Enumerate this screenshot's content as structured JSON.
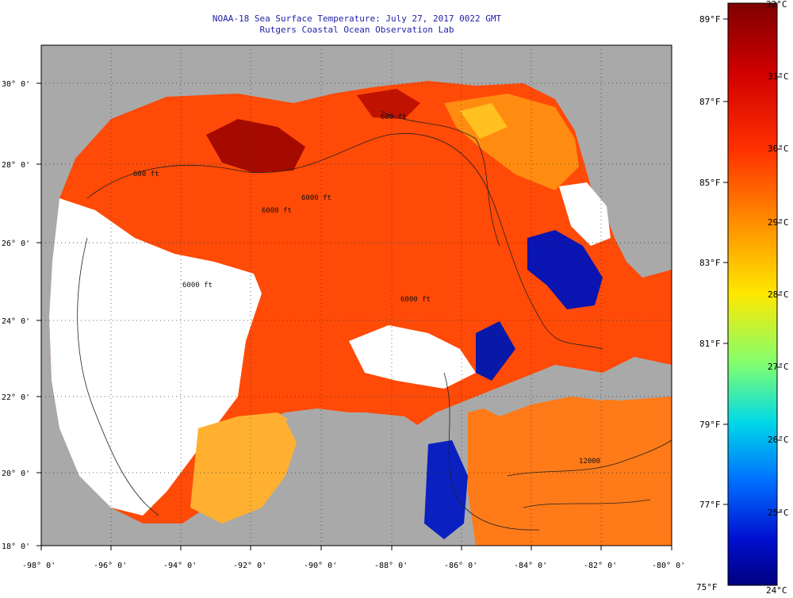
{
  "title": {
    "line1": "NOAA-18 Sea Surface Temperature:  July 27, 2017 0022 GMT",
    "line2": "Rutgers Coastal Ocean Observation Lab"
  },
  "axes": {
    "x_ticks": [
      "-98° 0'",
      "-96° 0'",
      "-94° 0'",
      "-92° 0'",
      "-90° 0'",
      "-88° 0'",
      "-86° 0'",
      "-84° 0'",
      "-82° 0'",
      "-80° 0'"
    ],
    "y_ticks": [
      "30° 0'",
      "28° 0'",
      "26° 0'",
      "24° 0'",
      "22° 0'",
      "20° 0'",
      "18° 0'"
    ],
    "lon_range": [
      -98,
      -80
    ],
    "lat_range": [
      18,
      31
    ]
  },
  "contour_labels": [
    "600 ft",
    "600 ft",
    "6000 ft",
    "6000 ft",
    "6000 ft",
    "6000 ft",
    "12000"
  ],
  "colorbar": {
    "celsius": [
      "32°C",
      "31°C",
      "30°C",
      "29°C",
      "28°C",
      "27°C",
      "26°C",
      "25°C",
      "24°C"
    ],
    "fahrenheit": [
      "89°F",
      "87°F",
      "85°F",
      "83°F",
      "81°F",
      "79°F",
      "77°F",
      "75°F"
    ]
  },
  "colors": {
    "land": "#a9a9a9",
    "cloud": "#ffffff",
    "hot": "#8b0000",
    "warm": "#ff3c00",
    "mid": "#ffe000",
    "cool": "#00c0e0",
    "cold": "#00008f"
  }
}
